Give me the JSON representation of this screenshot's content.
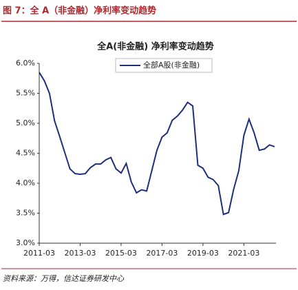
{
  "header": "图 7：全 A（非金融）净利率变动趋势",
  "source": "资料来源：万得，信达证券研发中心",
  "chart_data": {
    "type": "line",
    "title": "全A(非金融) 净利率变动趋势",
    "categories": [
      "2011-03",
      null,
      null,
      null,
      null,
      null,
      null,
      null,
      "2013-03",
      null,
      null,
      null,
      null,
      null,
      null,
      null,
      "2015-03",
      null,
      null,
      null,
      null,
      null,
      null,
      null,
      "2017-03",
      null,
      null,
      null,
      null,
      null,
      null,
      null,
      "2019-03",
      null,
      null,
      null,
      null,
      null,
      null,
      null,
      "2021-03",
      null,
      null,
      null,
      null,
      null,
      null
    ],
    "series": [
      {
        "name": "全部A股(非金融)",
        "color": "#1f2d7a",
        "values": [
          5.85,
          5.71,
          5.5,
          5.04,
          4.78,
          4.51,
          4.24,
          4.16,
          4.15,
          4.16,
          4.26,
          4.32,
          4.32,
          4.39,
          4.43,
          4.24,
          4.17,
          4.33,
          4.02,
          3.84,
          3.89,
          3.87,
          4.21,
          4.55,
          4.77,
          4.84,
          5.05,
          5.12,
          5.22,
          5.35,
          5.29,
          4.3,
          4.25,
          4.1,
          4.06,
          3.96,
          3.48,
          3.51,
          3.9,
          4.21,
          4.8,
          5.07,
          4.84,
          4.55,
          4.57,
          4.64,
          4.61
        ]
      }
    ],
    "ylim": [
      3.0,
      6.0
    ],
    "yticks": [
      {
        "value": 3.0,
        "label": "3.0%"
      },
      {
        "value": 3.5,
        "label": "3.5%"
      },
      {
        "value": 4.0,
        "label": "4.0%"
      },
      {
        "value": 4.5,
        "label": "4.5%"
      },
      {
        "value": 5.0,
        "label": "5.0%"
      },
      {
        "value": 5.5,
        "label": "5.5%"
      },
      {
        "value": 6.0,
        "label": "6.0%"
      }
    ],
    "grid": false,
    "legend": "top"
  }
}
